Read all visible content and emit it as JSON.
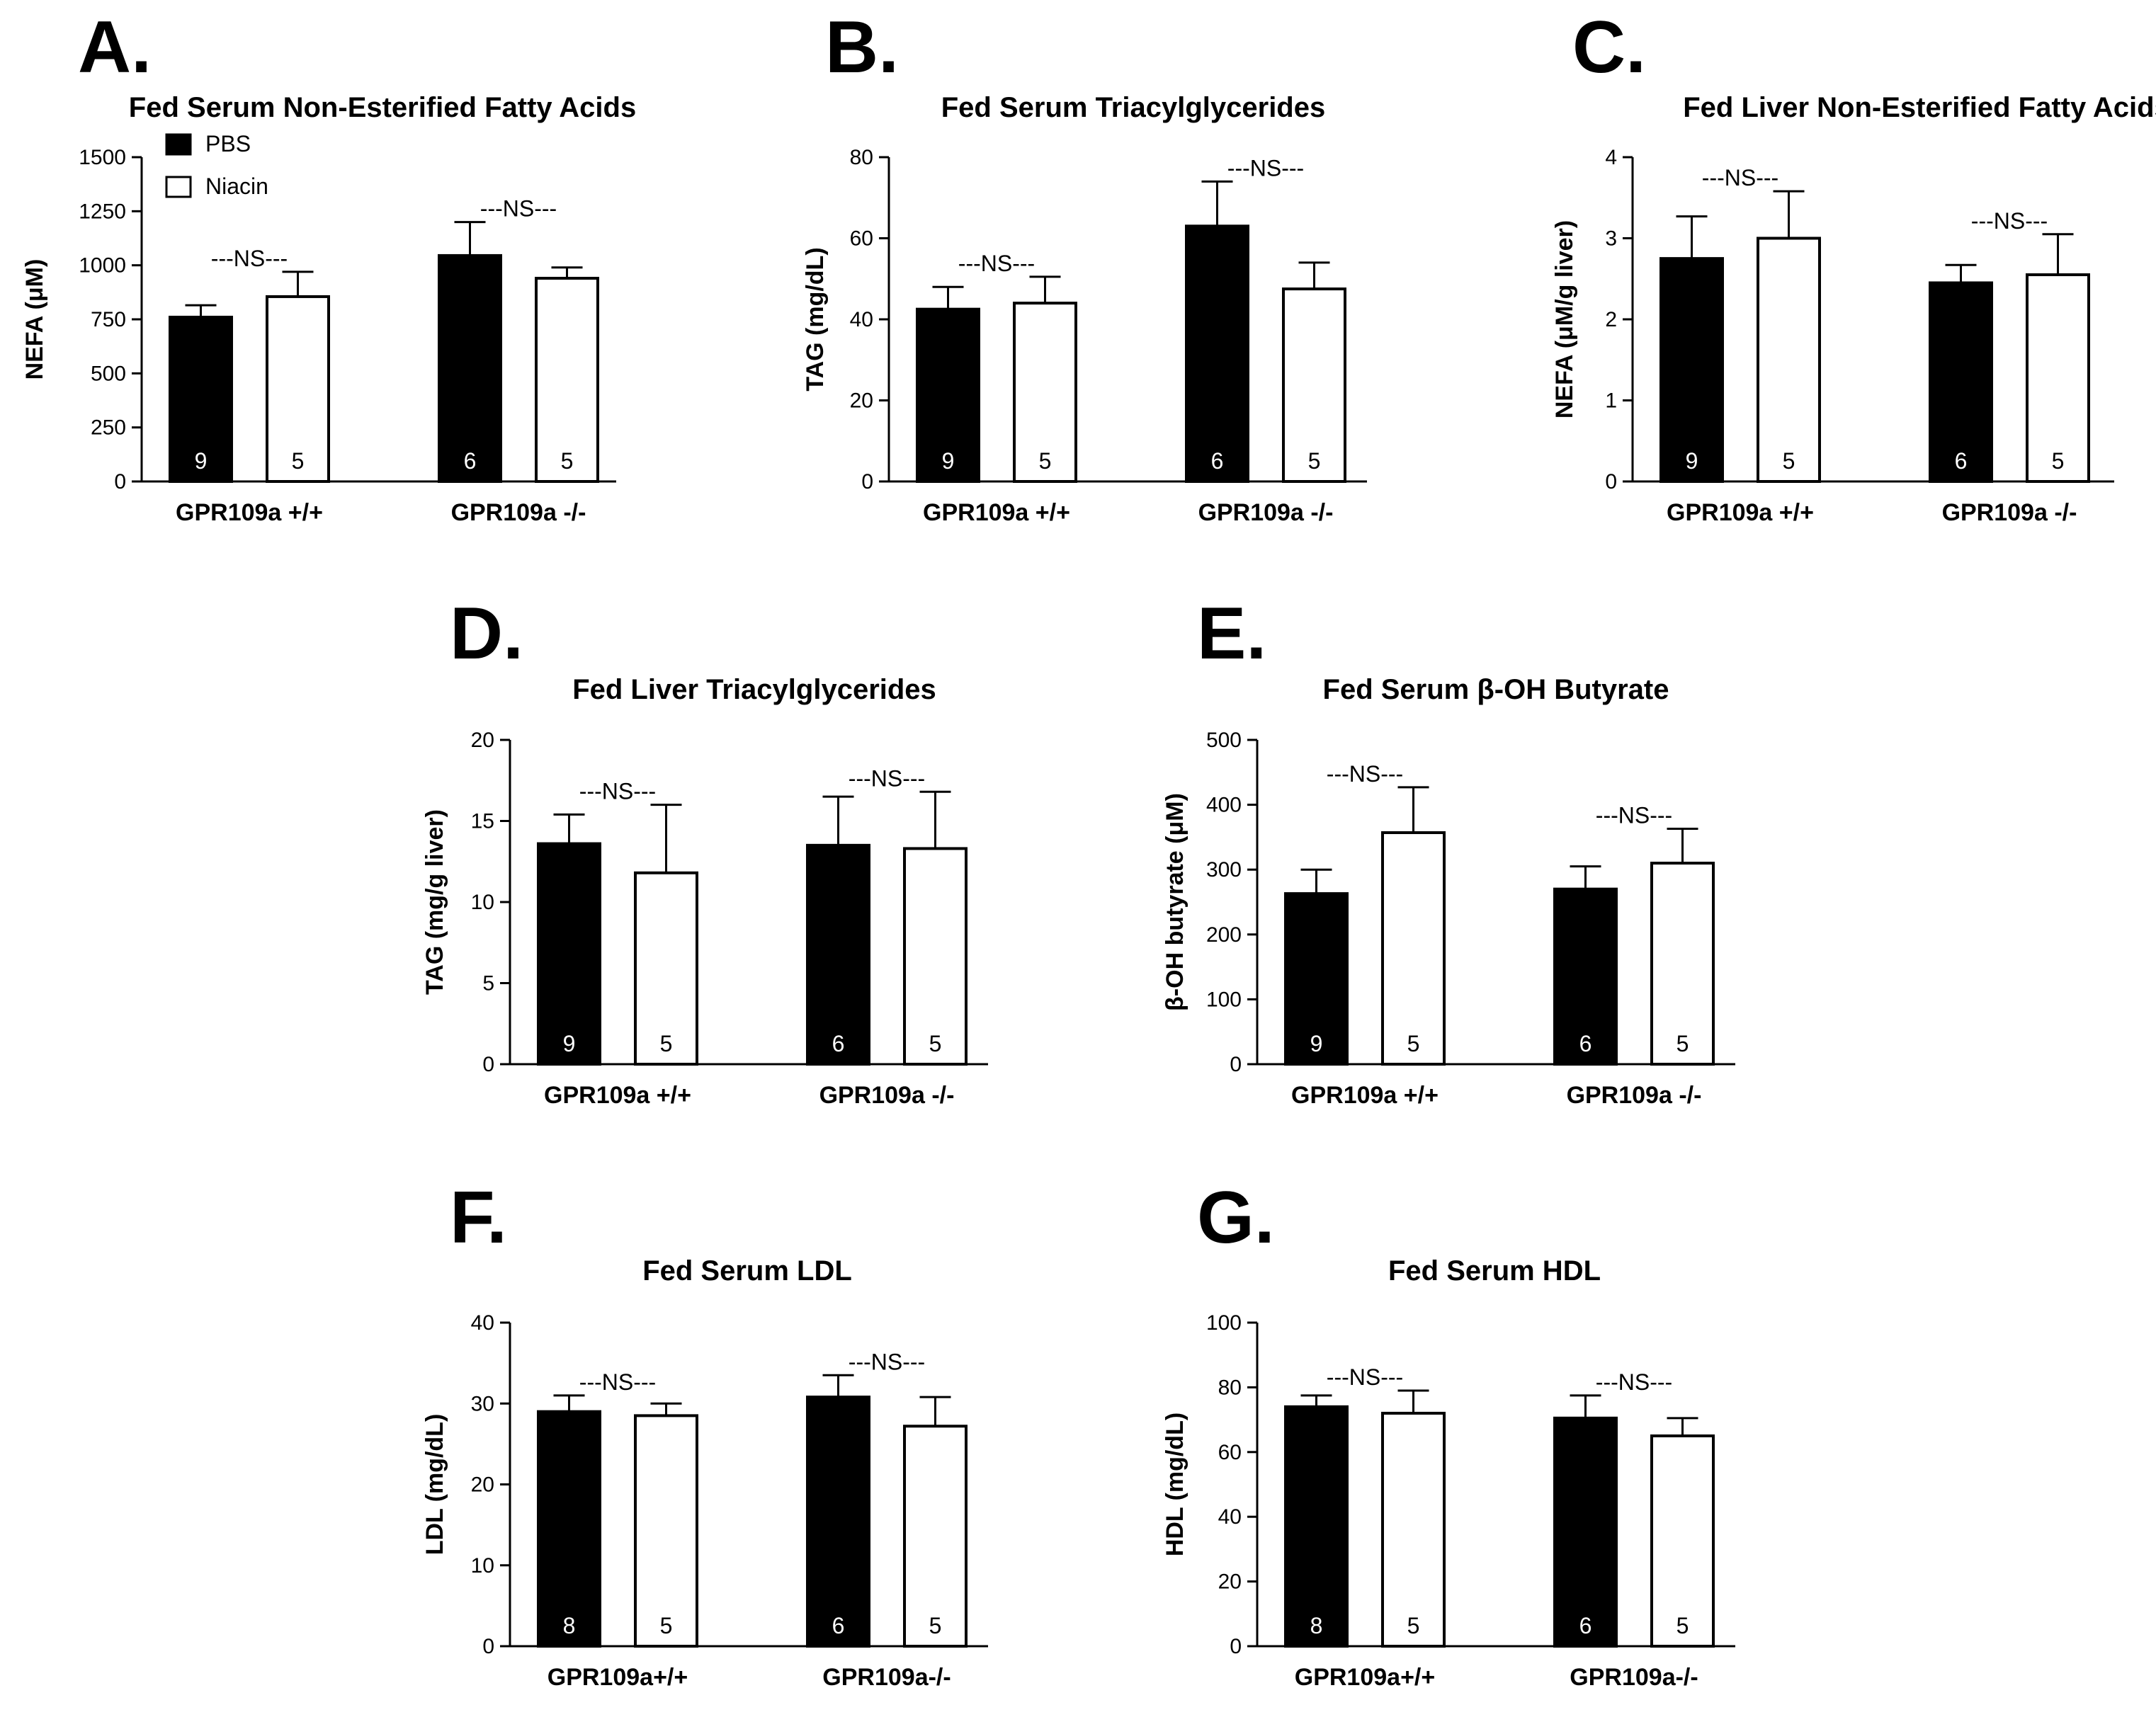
{
  "figure": {
    "bar_colors": {
      "PBS": "#000000",
      "Niacin": "#ffffff"
    },
    "axis_color": "#000000"
  },
  "chart_data": [
    {
      "letter": "A.",
      "type": "bar",
      "title": "Fed Serum Non-Esterified Fatty Acids",
      "ylabel": "NEFA (μM)",
      "xlabel": "",
      "ylim": [
        0,
        1500
      ],
      "yticks": [
        0,
        250,
        500,
        750,
        1000,
        1250,
        1500
      ],
      "categories": [
        "GPR109a +/+",
        "GPR109a -/-"
      ],
      "series": [
        {
          "name": "PBS",
          "values": [
            760,
            1045
          ],
          "errors": [
            55,
            155
          ],
          "n": [
            "9",
            "6"
          ]
        },
        {
          "name": "Niacin",
          "values": [
            855,
            940
          ],
          "errors": [
            115,
            50
          ],
          "n": [
            "5",
            "5"
          ]
        }
      ],
      "significance": [
        "---NS---",
        "---NS---"
      ],
      "legend": {
        "position": "top-left",
        "entries": [
          "PBS",
          "Niacin"
        ]
      }
    },
    {
      "letter": "B.",
      "type": "bar",
      "title": "Fed Serum Triacylglycerides",
      "ylabel": "TAG (mg/dL)",
      "xlabel": "",
      "ylim": [
        0,
        80
      ],
      "yticks": [
        0,
        20,
        40,
        60,
        80
      ],
      "categories": [
        "GPR109a +/+",
        "GPR109a -/-"
      ],
      "series": [
        {
          "name": "PBS",
          "values": [
            42.5,
            63
          ],
          "errors": [
            5.5,
            11
          ],
          "n": [
            "9",
            "6"
          ]
        },
        {
          "name": "Niacin",
          "values": [
            44,
            47.5
          ],
          "errors": [
            6.5,
            6.5
          ],
          "n": [
            "5",
            "5"
          ]
        }
      ],
      "significance": [
        "---NS---",
        "---NS---"
      ]
    },
    {
      "letter": "C.",
      "type": "bar",
      "title": "Fed Liver Non-Esterified Fatty Acids",
      "ylabel": "NEFA (μM/g liver)",
      "xlabel": "",
      "ylim": [
        0,
        4
      ],
      "yticks": [
        0,
        1,
        2,
        3,
        4
      ],
      "categories": [
        "GPR109a +/+",
        "GPR109a -/-"
      ],
      "series": [
        {
          "name": "PBS",
          "values": [
            2.75,
            2.45
          ],
          "errors": [
            0.52,
            0.22
          ],
          "n": [
            "9",
            "6"
          ]
        },
        {
          "name": "Niacin",
          "values": [
            3.0,
            2.55
          ],
          "errors": [
            0.58,
            0.5
          ],
          "n": [
            "5",
            "5"
          ]
        }
      ],
      "significance": [
        "---NS---",
        "---NS---"
      ]
    },
    {
      "letter": "D.",
      "type": "bar",
      "title": "Fed Liver Triacylglycerides",
      "ylabel": "TAG (mg/g liver)",
      "xlabel": "",
      "ylim": [
        0,
        20
      ],
      "yticks": [
        0,
        5,
        10,
        15,
        20
      ],
      "categories": [
        "GPR109a +/+",
        "GPR109a -/-"
      ],
      "series": [
        {
          "name": "PBS",
          "values": [
            13.6,
            13.5
          ],
          "errors": [
            1.8,
            3.0
          ],
          "n": [
            "9",
            "6"
          ]
        },
        {
          "name": "Niacin",
          "values": [
            11.8,
            13.3
          ],
          "errors": [
            4.2,
            3.5
          ],
          "n": [
            "5",
            "5"
          ]
        }
      ],
      "significance": [
        "---NS---",
        "---NS---"
      ]
    },
    {
      "letter": "E.",
      "type": "bar",
      "title": "Fed Serum β-OH Butyrate",
      "ylabel": "β-OH butyrate (μM)",
      "xlabel": "",
      "ylim": [
        0,
        500
      ],
      "yticks": [
        0,
        100,
        200,
        300,
        400,
        500
      ],
      "categories": [
        "GPR109a +/+",
        "GPR109a -/-"
      ],
      "series": [
        {
          "name": "PBS",
          "values": [
            263,
            270
          ],
          "errors": [
            37,
            35
          ],
          "n": [
            "9",
            "6"
          ]
        },
        {
          "name": "Niacin",
          "values": [
            357,
            310
          ],
          "errors": [
            70,
            53
          ],
          "n": [
            "5",
            "5"
          ]
        }
      ],
      "significance": [
        "---NS---",
        "---NS---"
      ]
    },
    {
      "letter": "F.",
      "type": "bar",
      "title": "Fed Serum LDL",
      "ylabel": "LDL (mg/dL)",
      "xlabel": "",
      "ylim": [
        0,
        40
      ],
      "yticks": [
        0,
        10,
        20,
        30,
        40
      ],
      "categories": [
        "GPR109a+/+",
        "GPR109a-/-"
      ],
      "series": [
        {
          "name": "PBS",
          "values": [
            29,
            30.8
          ],
          "errors": [
            2,
            2.7
          ],
          "n": [
            "8",
            "6"
          ]
        },
        {
          "name": "Niacin",
          "values": [
            28.5,
            27.2
          ],
          "errors": [
            1.5,
            3.6
          ],
          "n": [
            "5",
            "5"
          ]
        }
      ],
      "significance": [
        "---NS---",
        "---NS---"
      ]
    },
    {
      "letter": "G.",
      "type": "bar",
      "title": "Fed Serum HDL",
      "ylabel": "HDL (mg/dL)",
      "xlabel": "",
      "ylim": [
        0,
        100
      ],
      "yticks": [
        0,
        20,
        40,
        60,
        80,
        100
      ],
      "categories": [
        "GPR109a+/+",
        "GPR109a-/-"
      ],
      "series": [
        {
          "name": "PBS",
          "values": [
            74,
            70.5
          ],
          "errors": [
            3.5,
            7
          ],
          "n": [
            "8",
            "6"
          ]
        },
        {
          "name": "Niacin",
          "values": [
            72,
            65
          ],
          "errors": [
            7,
            5.5
          ],
          "n": [
            "5",
            "5"
          ]
        }
      ],
      "significance": [
        "---NS---",
        "---NS---"
      ]
    }
  ]
}
